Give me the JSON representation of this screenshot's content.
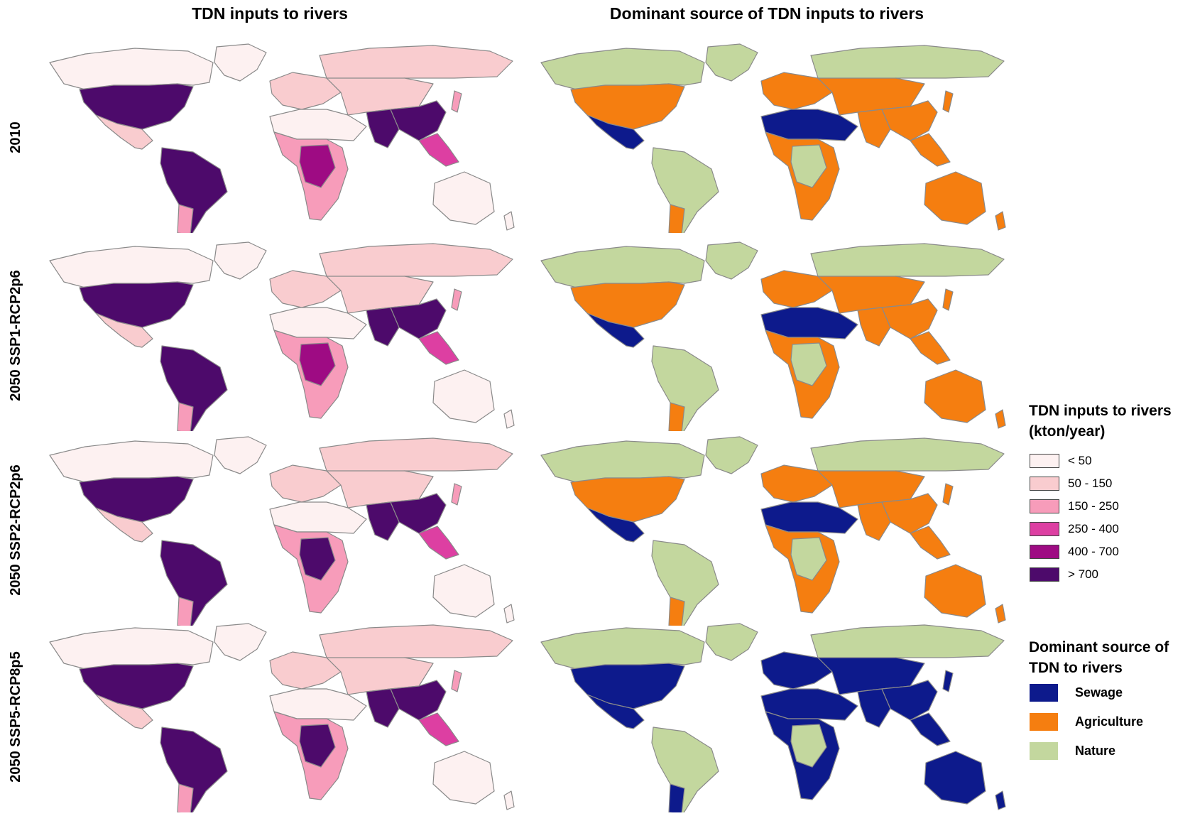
{
  "titles": {
    "left": "TDN inputs to rivers",
    "right": "Dominant source of TDN inputs to rivers"
  },
  "rows": [
    {
      "label": "2010",
      "tdn": {
        "north_america": ">700",
        "south_america": ">700",
        "central_africa": "400-700",
        "south_asia": ">700",
        "east_asia": ">700",
        "europe": "50-150",
        "north_asia": "50-150",
        "australia": "<50"
      },
      "source": {
        "north_america": "Agriculture",
        "mexico": "Sewage",
        "south_america": "Nature",
        "south_america_south": "Agriculture",
        "north_africa_middle_east": "Sewage",
        "africa": "Agriculture",
        "europe_asia": "Agriculture",
        "north": "Nature",
        "australia": "Agriculture"
      }
    },
    {
      "label": "2050 SSP1-RCP2p6",
      "tdn": {
        "north_america": ">700",
        "south_america": ">700",
        "central_africa": "400-700",
        "south_asia": ">700",
        "east_asia": ">700",
        "europe": "50-150",
        "north_asia": "50-150",
        "australia": "<50"
      },
      "source": {
        "north_america": "Agriculture",
        "mexico": "Sewage",
        "south_america": "Nature",
        "south_america_south": "Agriculture",
        "north_africa_middle_east": "Sewage",
        "africa": "Agriculture",
        "europe_asia": "Agriculture",
        "north": "Nature",
        "australia": "Agriculture"
      }
    },
    {
      "label": "2050 SSP2-RCP2p6",
      "tdn": {
        "north_america": ">700",
        "south_america": ">700",
        "central_africa": ">700",
        "south_asia": ">700",
        "east_asia": ">700",
        "europe": "50-150",
        "north_asia": "50-150",
        "australia": "<50"
      },
      "source": {
        "north_america": "Agriculture",
        "mexico": "Sewage",
        "south_america": "Nature",
        "south_america_south": "Agriculture",
        "north_africa_middle_east": "Sewage",
        "africa": "Agriculture",
        "europe_asia": "Agriculture",
        "north": "Nature",
        "australia": "Agriculture"
      }
    },
    {
      "label": "2050 SSP5-RCP8p5",
      "tdn": {
        "north_america": ">700",
        "south_america": ">700",
        "central_africa": ">700",
        "south_asia": ">700",
        "east_asia": ">700",
        "europe": "50-150",
        "north_asia": "50-150",
        "australia": "<50"
      },
      "source": {
        "north_america": "Sewage",
        "mexico": "Sewage",
        "south_america": "Nature",
        "south_america_south": "Sewage",
        "north_africa_middle_east": "Sewage",
        "africa": "Sewage",
        "europe_asia": "Sewage",
        "north": "Nature",
        "australia": "Sewage"
      }
    }
  ],
  "legend_tdn": {
    "title_line1": "TDN inputs to rivers",
    "title_line2": "(kton/year)",
    "classes": [
      {
        "label": "< 50",
        "key": "<50",
        "color": "#FDF1F1"
      },
      {
        "label": "50 - 150",
        "key": "50-150",
        "color": "#F9CCCF"
      },
      {
        "label": "150 - 250",
        "key": "150-250",
        "color": "#F79CBA"
      },
      {
        "label": "250 - 400",
        "key": "250-400",
        "color": "#DD3FA2"
      },
      {
        "label": "400 - 700",
        "key": "400-700",
        "color": "#9E0B83"
      },
      {
        "label": "> 700",
        "key": ">700",
        "color": "#4D0A6B"
      }
    ]
  },
  "legend_source": {
    "title_line1": "Dominant source of",
    "title_line2": "TDN to rivers",
    "classes": [
      {
        "label": "Sewage",
        "color": "#0D1A8C"
      },
      {
        "label": "Agriculture",
        "color": "#F57E10"
      },
      {
        "label": "Nature",
        "color": "#C3D79E"
      }
    ]
  }
}
